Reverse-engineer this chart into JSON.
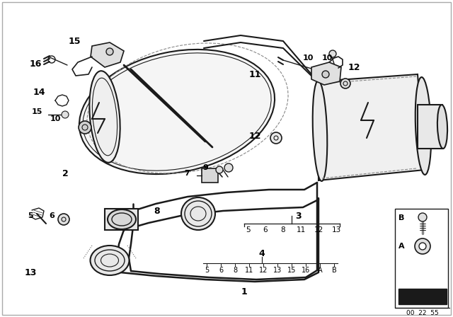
{
  "bg_color": "#ffffff",
  "line_color": "#1a1a1a",
  "label_color": "#000000",
  "border_color": "#cccccc",
  "footnote": "00  22  55",
  "items3": [
    "5",
    "6",
    "8",
    "11",
    "12",
    "13"
  ],
  "items4": [
    "5",
    "6",
    "8",
    "11",
    "12",
    "13",
    "15",
    "16",
    "A",
    "B"
  ],
  "label3": "3",
  "label4": "4"
}
